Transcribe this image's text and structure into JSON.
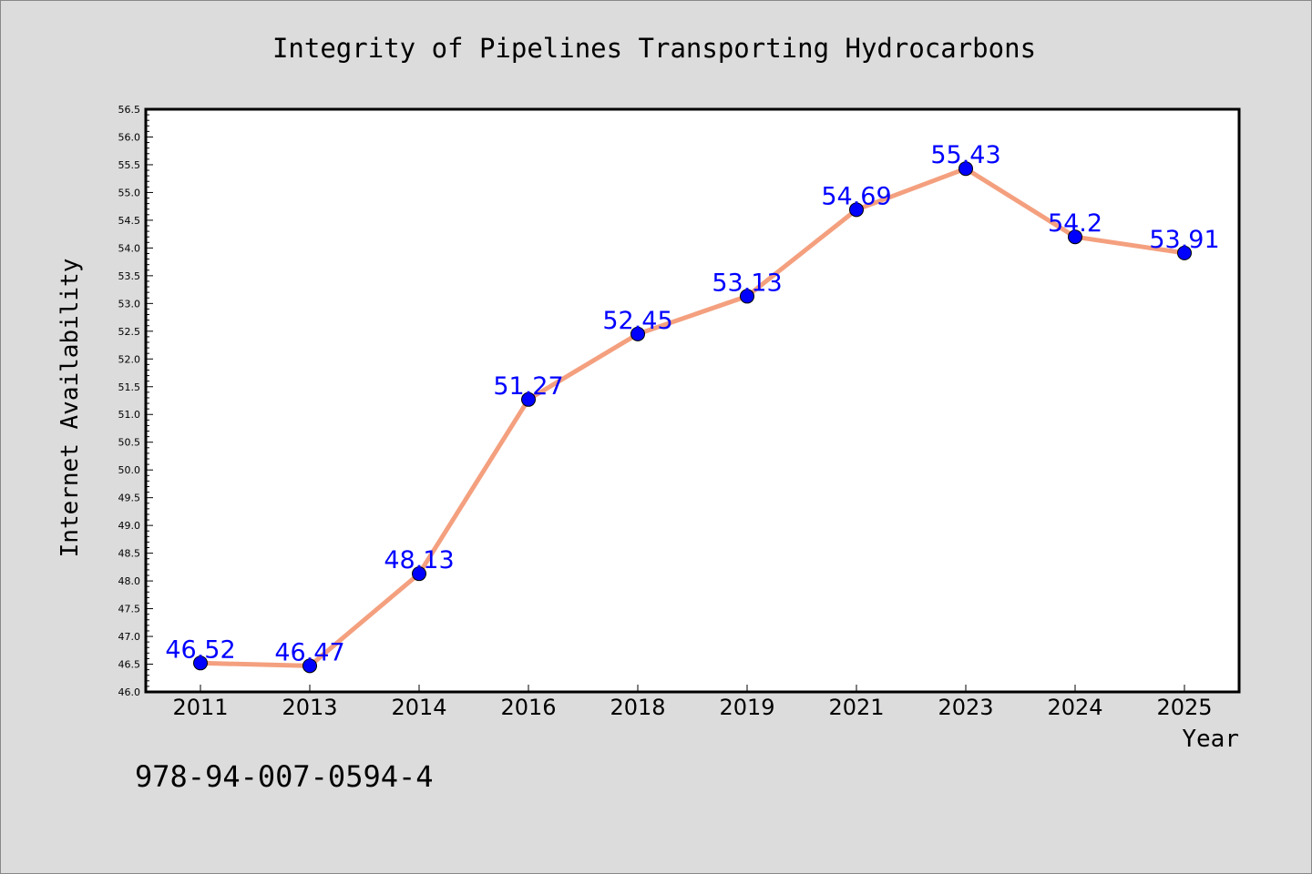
{
  "chart_data": {
    "type": "line",
    "title": "Integrity of Pipelines Transporting Hydrocarbons",
    "xlabel": "Year",
    "ylabel": "Internet Availability",
    "categories": [
      "2011",
      "2013",
      "2014",
      "2016",
      "2018",
      "2019",
      "2021",
      "2023",
      "2024",
      "2025"
    ],
    "series": [
      {
        "values": [
          46.52,
          46.47,
          48.13,
          51.27,
          52.45,
          53.13,
          54.69,
          55.43,
          54.2,
          53.91
        ]
      }
    ],
    "data_labels": [
      "46.52",
      "46.47",
      "48.13",
      "51.27",
      "52.45",
      "53.13",
      "54.69",
      "55.43",
      "54.2",
      "53.91"
    ],
    "ylim": [
      46.0,
      56.5
    ],
    "yticks": [
      "46.0",
      "46.5",
      "47.0",
      "47.5",
      "48.0",
      "48.5",
      "49.0",
      "49.5",
      "50.0",
      "50.5",
      "51.0",
      "51.5",
      "52.0",
      "52.5",
      "53.0",
      "53.5",
      "54.0",
      "54.5",
      "55.0",
      "55.5",
      "56.0",
      "56.5"
    ],
    "grid": false,
    "legend": "none",
    "colors": {
      "line": "#f4a07f",
      "marker": "#0000ff",
      "label": "#0000ff",
      "background": "#dcdcdc",
      "plot_bg": "#ffffff"
    }
  },
  "footer": {
    "isbn": "978-94-007-0594-4"
  }
}
